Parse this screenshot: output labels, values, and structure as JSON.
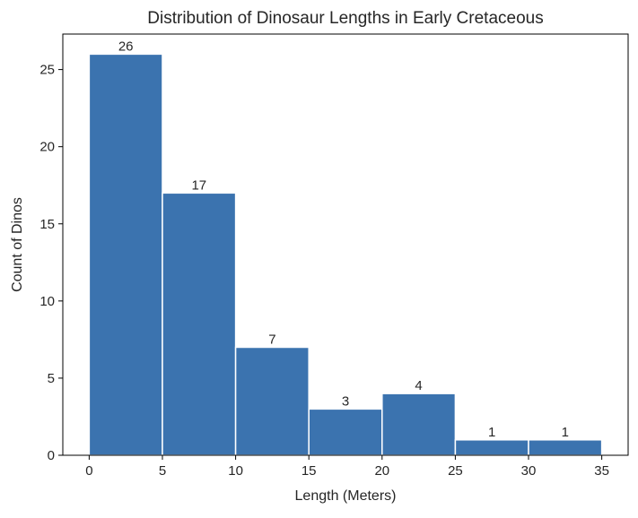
{
  "chart_data": {
    "type": "bar",
    "title": "Distribution of Dinosaur Lengths in Early Cretaceous",
    "xlabel": "Length (Meters)",
    "ylabel": "Count of Dinos",
    "bins": [
      {
        "start": 0,
        "end": 5,
        "count": 26,
        "label": "26"
      },
      {
        "start": 5,
        "end": 10,
        "count": 17,
        "label": "17"
      },
      {
        "start": 10,
        "end": 15,
        "count": 7,
        "label": "7"
      },
      {
        "start": 15,
        "end": 20,
        "count": 3,
        "label": "3"
      },
      {
        "start": 20,
        "end": 25,
        "count": 4,
        "label": "4"
      },
      {
        "start": 25,
        "end": 30,
        "count": 1,
        "label": "1"
      },
      {
        "start": 30,
        "end": 35,
        "count": 1,
        "label": "1"
      }
    ],
    "xlim": [
      -1.8,
      36.8
    ],
    "ylim": [
      0,
      27.3
    ],
    "x_ticks": [
      0,
      5,
      10,
      15,
      20,
      25,
      30,
      35
    ],
    "x_tick_labels": [
      "0",
      "5",
      "10",
      "15",
      "20",
      "25",
      "30",
      "35"
    ],
    "y_ticks": [
      0,
      5,
      10,
      15,
      20,
      25
    ],
    "y_tick_labels": [
      "0",
      "5",
      "10",
      "15",
      "20",
      "25"
    ],
    "grid": false,
    "legend": "none",
    "bar_color": "#3B73AF",
    "bar_edge_color": "#ffffff"
  }
}
